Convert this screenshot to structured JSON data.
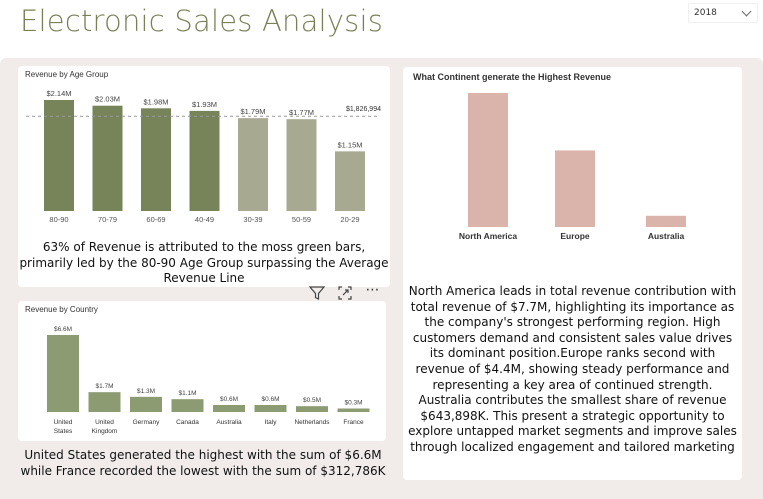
{
  "header": {
    "title": "Electronic Sales Analysis"
  },
  "year_filter": {
    "value": "2018"
  },
  "age_chart": {
    "title": "Revenue by Age Group",
    "average_label": "$1,826,994",
    "insight": "63% of Revenue is attributed to the moss green bars, primarily led by the 80-90 Age Group surpassing the Average Revenue Line",
    "colors": {
      "above": "#77845a",
      "below": "#a7a991",
      "avg_line": "#999999"
    }
  },
  "country_chart": {
    "title": "Revenue by Country",
    "insight": "United States generated the highest with the sum of $6.6M while France recorded the lowest with the sum of $312,786K",
    "colors": {
      "bar": "#8d9b72"
    }
  },
  "continent_chart": {
    "title": "What Continent generate the Highest Revenue",
    "insight": "North America leads in total revenue contribution with total revenue of $7.7M, highlighting its importance as the company's strongest performing region. High customers demand and consistent sales value drives its dominant position.Europe ranks second with revenue of $4.4M, showing steady performance and representing a key area of continued strength. Australia contributes the smallest share of revenue $643,898K. This present a strategic opportunity to explore untapped market segments and improve sales through localized engagement and tailored marketing",
    "colors": {
      "bar": "#dab3ab"
    }
  },
  "visual_toolbar": {
    "filter_icon": "filter-icon",
    "focus_icon": "focus-mode-icon",
    "more_label": "⋯"
  },
  "chart_data": [
    {
      "type": "bar",
      "title": "Revenue by Age Group",
      "xlabel": "",
      "ylabel": "",
      "categories": [
        "80-90",
        "70-79",
        "60-69",
        "40-49",
        "30-39",
        "50-59",
        "20-29"
      ],
      "values": [
        2.14,
        2.03,
        1.98,
        1.93,
        1.79,
        1.77,
        1.15
      ],
      "value_labels": [
        "$2.14M",
        "$2.03M",
        "$1.98M",
        "$1.93M",
        "$1.79M",
        "$1.77M",
        "$1.15M"
      ],
      "average": 1.826994,
      "ylim": [
        0,
        2.14
      ],
      "grid": false
    },
    {
      "type": "bar",
      "title": "Revenue by Country",
      "xlabel": "",
      "ylabel": "",
      "categories": [
        "United States",
        "United Kingdom",
        "Germany",
        "Canada",
        "Australia",
        "Italy",
        "Netherlands",
        "France"
      ],
      "values": [
        6.6,
        1.7,
        1.3,
        1.1,
        0.6,
        0.6,
        0.5,
        0.3
      ],
      "value_labels": [
        "$6.6M",
        "$1.7M",
        "$1.3M",
        "$1.1M",
        "$0.6M",
        "$0.6M",
        "$0.5M",
        "$0.3M"
      ],
      "ylim": [
        0,
        6.6
      ],
      "grid": false
    },
    {
      "type": "bar",
      "title": "What Continent generate the Highest Revenue",
      "xlabel": "",
      "ylabel": "",
      "categories": [
        "North America",
        "Europe",
        "Australia"
      ],
      "values": [
        7.7,
        4.4,
        0.643898
      ],
      "ylim": [
        0,
        7.7
      ],
      "grid": false
    }
  ]
}
